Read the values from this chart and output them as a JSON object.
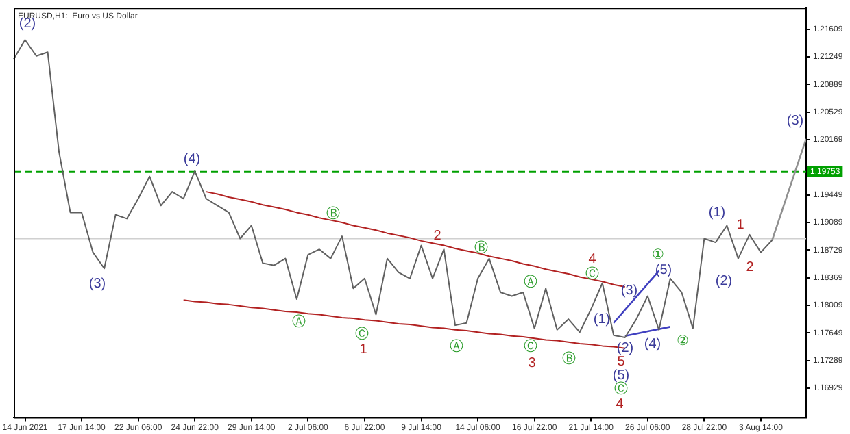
{
  "chart_data": {
    "type": "line",
    "title": "EURUSD,H1:  Euro vs US Dollar",
    "categories": [
      null,
      "14 Jun 2021",
      null,
      null,
      null,
      null,
      "17 Jun 14:00",
      null,
      null,
      null,
      null,
      "22 Jun 06:00",
      null,
      null,
      null,
      null,
      "24 Jun 22:00",
      null,
      null,
      null,
      null,
      "29 Jun 14:00",
      null,
      null,
      null,
      null,
      "2 Jul 06:00",
      null,
      null,
      null,
      null,
      "6 Jul 22:00",
      null,
      null,
      null,
      null,
      "9 Jul 14:00",
      null,
      null,
      null,
      null,
      "14 Jul 06:00",
      null,
      null,
      null,
      null,
      "16 Jul 22:00",
      null,
      null,
      null,
      null,
      "21 Jul 14:00",
      null,
      null,
      null,
      null,
      "26 Jul 06:00",
      null,
      null,
      null,
      null,
      "28 Jul 22:00",
      null,
      null,
      null,
      null,
      "3 Aug 14:00",
      null,
      null,
      null,
      null
    ],
    "ylim": [
      1.1655,
      1.2189
    ],
    "yticks": [
      1.16929,
      1.17289,
      1.17649,
      1.18009,
      1.18369,
      1.18729,
      1.19089,
      1.19449,
      {
        "value": 1.19809,
        "label": null
      },
      1.20169,
      1.20529,
      1.20889,
      1.21249,
      1.21609
    ],
    "grid": false,
    "legend": false,
    "marker": "none",
    "series": [
      {
        "color": "#606060",
        "values": [
          1.2122,
          1.2147,
          1.2126,
          1.2131,
          1.2001,
          1.1922,
          1.1922,
          1.187,
          1.1849,
          1.1919,
          1.1914,
          1.194,
          1.1969,
          1.1931,
          1.1949,
          1.194,
          1.1976,
          1.194,
          1.1931,
          1.1922,
          1.1888,
          1.1905,
          1.1856,
          1.1853,
          1.1862,
          1.1809,
          1.1867,
          1.1874,
          1.1862,
          1.1891,
          1.1823,
          1.1836,
          1.1789,
          1.1862,
          1.1844,
          1.1836,
          1.1879,
          1.1836,
          1.1874,
          1.1775,
          1.1778,
          1.1836,
          1.1862,
          1.1818,
          1.1813,
          1.1818,
          1.1771,
          1.1823,
          1.1769,
          1.1783,
          1.1766,
          1.1796,
          1.183,
          1.1762,
          1.1759,
          1.1783,
          1.1813,
          1.1769,
          1.1836,
          1.1818,
          1.1771,
          1.1888,
          1.1883,
          1.1905,
          1.1862,
          1.1893,
          1.187,
          1.1886,
          null,
          null,
          null
        ]
      },
      {
        "color": "#b22222",
        "values": [
          null,
          null,
          null,
          null,
          null,
          null,
          null,
          null,
          null,
          null,
          null,
          null,
          null,
          null,
          null,
          null,
          null,
          1.1949,
          1.1946,
          1.1942,
          1.1939,
          1.1936,
          1.1932,
          1.1929,
          1.1926,
          1.1922,
          1.1919,
          1.1915,
          1.1912,
          1.1909,
          1.1905,
          1.1902,
          1.1899,
          1.1895,
          1.1892,
          1.1889,
          1.1885,
          1.1882,
          1.1879,
          1.1875,
          1.1872,
          1.1869,
          1.1865,
          1.1862,
          1.1859,
          1.1855,
          1.1852,
          1.1848,
          1.1845,
          1.1842,
          1.1838,
          1.1835,
          1.1832,
          1.1828,
          1.1825,
          null,
          null,
          null,
          null,
          null,
          null,
          null,
          null,
          null,
          null,
          null,
          null,
          null,
          null,
          null,
          null
        ]
      },
      {
        "color": "#b22222",
        "values": [
          null,
          null,
          null,
          null,
          null,
          null,
          null,
          null,
          null,
          null,
          null,
          null,
          null,
          null,
          null,
          1.1808,
          1.1806,
          1.1805,
          1.1803,
          1.1802,
          1.18,
          1.1798,
          1.1797,
          1.1795,
          1.1793,
          1.1792,
          1.179,
          1.1789,
          1.1787,
          1.1785,
          1.1784,
          1.1782,
          1.1781,
          1.1779,
          1.1777,
          1.1776,
          1.1774,
          1.1772,
          1.1771,
          1.1769,
          1.1768,
          1.1766,
          1.1764,
          1.1763,
          1.1761,
          1.176,
          1.1758,
          1.1756,
          1.1755,
          1.1753,
          1.1751,
          1.175,
          1.1748,
          1.1747,
          1.1745,
          null,
          null,
          null,
          null,
          null,
          null,
          null,
          null,
          null,
          null,
          null,
          null,
          null,
          null,
          null,
          null
        ]
      },
      {
        "color": "#4040c0",
        "values": [
          null,
          null,
          null,
          null,
          null,
          null,
          null,
          null,
          null,
          null,
          null,
          null,
          null,
          null,
          null,
          null,
          null,
          null,
          null,
          null,
          null,
          null,
          null,
          null,
          null,
          null,
          null,
          null,
          null,
          null,
          null,
          null,
          null,
          null,
          null,
          null,
          null,
          null,
          null,
          null,
          null,
          null,
          null,
          null,
          null,
          null,
          null,
          null,
          null,
          null,
          null,
          null,
          null,
          1.1778,
          1.1795,
          1.1812,
          1.1829,
          1.1846,
          null,
          null,
          null,
          null,
          null,
          null,
          null,
          null,
          null,
          null,
          null,
          null,
          null
        ]
      },
      {
        "color": "#4040c0",
        "values": [
          null,
          null,
          null,
          null,
          null,
          null,
          null,
          null,
          null,
          null,
          null,
          null,
          null,
          null,
          null,
          null,
          null,
          null,
          null,
          null,
          null,
          null,
          null,
          null,
          null,
          null,
          null,
          null,
          null,
          null,
          null,
          null,
          null,
          null,
          null,
          null,
          null,
          null,
          null,
          null,
          null,
          null,
          null,
          null,
          null,
          null,
          null,
          null,
          null,
          null,
          null,
          null,
          null,
          null,
          1.1761,
          1.1764,
          1.1767,
          1.177,
          1.1773,
          null,
          null,
          null,
          null,
          null,
          null,
          null,
          null,
          null,
          null,
          null,
          null
        ]
      },
      {
        "color": "#909090",
        "values": [
          null,
          null,
          null,
          null,
          null,
          null,
          null,
          null,
          null,
          null,
          null,
          null,
          null,
          null,
          null,
          null,
          null,
          null,
          null,
          null,
          null,
          null,
          null,
          null,
          null,
          null,
          null,
          null,
          null,
          null,
          null,
          null,
          null,
          null,
          null,
          null,
          null,
          null,
          null,
          null,
          null,
          null,
          null,
          null,
          null,
          null,
          null,
          null,
          null,
          null,
          null,
          null,
          null,
          null,
          null,
          null,
          null,
          null,
          null,
          null,
          null,
          null,
          null,
          null,
          null,
          null,
          null,
          1.1886,
          1.193,
          1.1974,
          1.2018
        ]
      }
    ],
    "ref_lines": [
      {
        "axis": "y",
        "value": 1.19753,
        "label": "1.19753",
        "color": "#00a000",
        "line_style": "dashed"
      },
      {
        "axis": "y",
        "value": 1.1888,
        "color": "#d0d0d0",
        "line_style": "solid"
      }
    ],
    "annotations": [
      "(2)",
      "(3)",
      "(4)",
      "Ⓑ",
      "Ⓐ",
      "Ⓒ",
      "1",
      "2",
      "Ⓑ",
      "Ⓐ",
      "Ⓐ",
      "Ⓒ",
      "3",
      "Ⓑ",
      "4",
      "Ⓒ",
      "(1)",
      "(3)",
      "(5)",
      "①",
      "(2)",
      "(4)",
      "②",
      "5",
      "(5)",
      "Ⓒ",
      "4",
      "(1)",
      "1",
      "(2)",
      "2",
      "(3)"
    ]
  }
}
